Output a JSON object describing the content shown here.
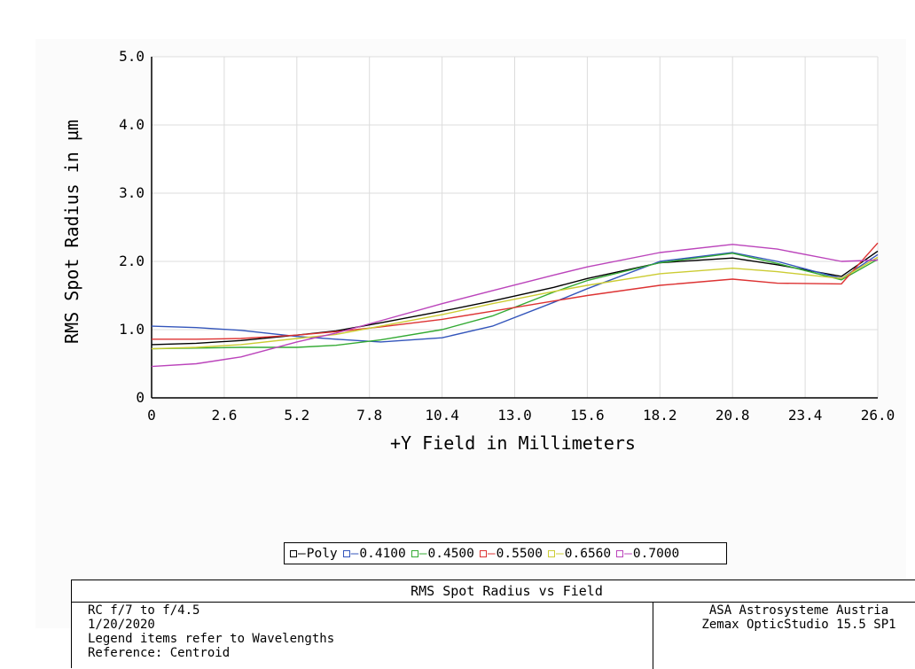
{
  "chart_data": {
    "type": "line",
    "xlabel": "+Y Field in Millimeters",
    "ylabel": "RMS Spot Radius in µm",
    "xlim": [
      0,
      26.0
    ],
    "ylim": [
      0,
      5.0
    ],
    "x_ticks": [
      "0",
      "2.6",
      "5.2",
      "7.8",
      "10.4",
      "13.0",
      "15.6",
      "18.2",
      "20.8",
      "23.4",
      "26.0"
    ],
    "y_ticks": [
      "0",
      "1.0",
      "2.0",
      "3.0",
      "4.0",
      "5.0"
    ],
    "grid": true,
    "legend_position": "bottom-center",
    "x": [
      0,
      1.6,
      3.2,
      5.2,
      6.6,
      8.2,
      10.4,
      12.2,
      14.4,
      15.6,
      18.2,
      20.8,
      22.4,
      24.7,
      26.0
    ],
    "series": [
      {
        "name": "Poly",
        "color": "#000000",
        "values": [
          0.78,
          0.8,
          0.84,
          0.92,
          0.98,
          1.1,
          1.27,
          1.42,
          1.62,
          1.75,
          1.98,
          2.05,
          1.95,
          1.78,
          2.15
        ]
      },
      {
        "name": "0.4100",
        "color": "#3355bb",
        "values": [
          1.05,
          1.03,
          0.99,
          0.9,
          0.86,
          0.82,
          0.88,
          1.05,
          1.4,
          1.6,
          2.0,
          2.13,
          2.0,
          1.75,
          2.1
        ]
      },
      {
        "name": "0.4500",
        "color": "#33aa33",
        "values": [
          0.72,
          0.73,
          0.74,
          0.74,
          0.77,
          0.85,
          1.0,
          1.2,
          1.55,
          1.72,
          1.98,
          2.12,
          1.97,
          1.73,
          2.03
        ]
      },
      {
        "name": "0.5500",
        "color": "#dd3333",
        "values": [
          0.86,
          0.86,
          0.87,
          0.92,
          0.97,
          1.04,
          1.15,
          1.27,
          1.42,
          1.5,
          1.65,
          1.74,
          1.68,
          1.67,
          2.27
        ]
      },
      {
        "name": "0.6560",
        "color": "#cccc33",
        "values": [
          0.72,
          0.74,
          0.78,
          0.87,
          0.93,
          1.05,
          1.22,
          1.38,
          1.56,
          1.65,
          1.82,
          1.9,
          1.85,
          1.75,
          2.06
        ]
      },
      {
        "name": "0.7000",
        "color": "#bb44bb",
        "values": [
          0.46,
          0.5,
          0.6,
          0.82,
          0.95,
          1.13,
          1.38,
          1.57,
          1.8,
          1.92,
          2.13,
          2.25,
          2.18,
          2.0,
          2.02
        ]
      }
    ]
  },
  "footer": {
    "title": "RMS Spot Radius vs Field",
    "left_lines": [
      "RC f/7 to f/4.5",
      "1/20/2020",
      "Legend items refer to Wavelengths",
      "Reference: Centroid"
    ],
    "right_lines": [
      "ASA Astrosysteme Austria",
      "Zemax OpticStudio 15.5 SP1"
    ]
  }
}
